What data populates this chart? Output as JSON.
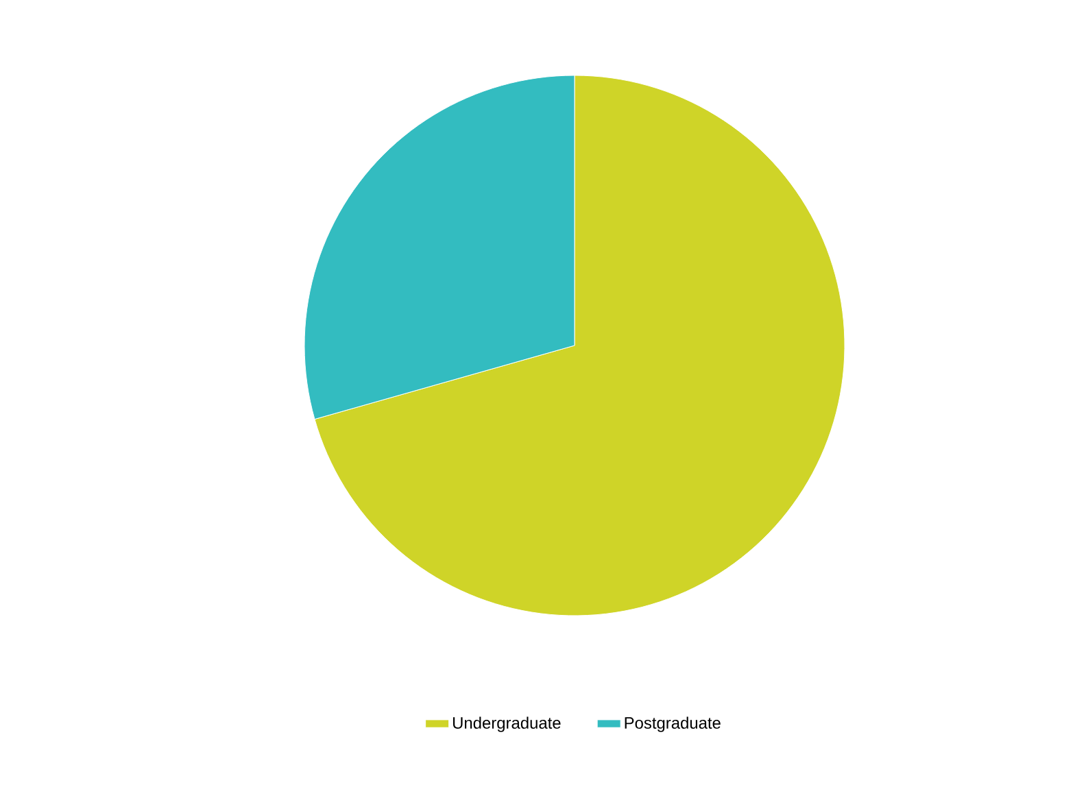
{
  "chart_data": {
    "type": "pie",
    "categories": [
      "Undergraduate",
      "Postgraduate"
    ],
    "values": [
      70.6,
      29.4
    ],
    "colors": [
      "#cfd428",
      "#33bcc0"
    ],
    "legend": "bottom"
  }
}
